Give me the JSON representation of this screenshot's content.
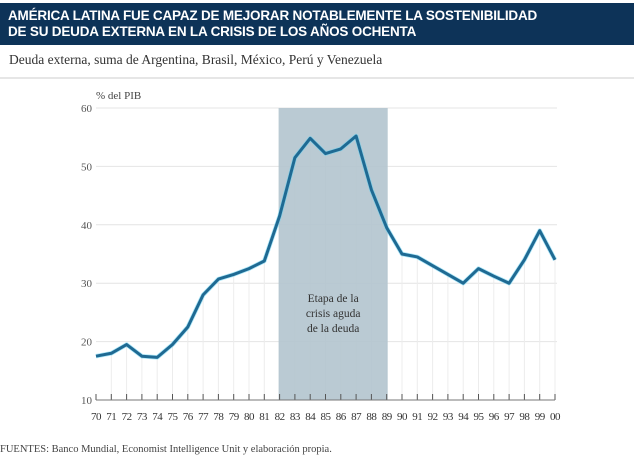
{
  "header": {
    "title_line1": "AMÉRICA LATINA FUE CAPAZ DE MEJORAR NOTABLEMENTE LA SOSTENIBILIDAD",
    "title_line2": "DE SU DEUDA EXTERNA EN LA CRISIS DE LOS AÑOS OCHENTA",
    "subtitle": "Deuda externa, suma de Argentina, Brasil, México, Perú y Venezuela"
  },
  "footer": "FUENTES: Banco Mundial, Economist Intelligence Unit y elaboración propia.",
  "chart_data": {
    "type": "line",
    "ylabel": "% del PIB",
    "ylim": [
      10,
      60
    ],
    "yticks": [
      10,
      20,
      30,
      40,
      50,
      60
    ],
    "grid": true,
    "categories": [
      "70",
      "71",
      "72",
      "73",
      "74",
      "75",
      "76",
      "77",
      "78",
      "79",
      "80",
      "81",
      "82",
      "83",
      "84",
      "85",
      "86",
      "87",
      "88",
      "89",
      "90",
      "91",
      "92",
      "93",
      "94",
      "95",
      "96",
      "97",
      "98",
      "99",
      "00"
    ],
    "values": [
      17.5,
      18,
      19.5,
      17.5,
      17.3,
      19.5,
      22.5,
      28,
      30.7,
      31.5,
      32.5,
      33.8,
      41.5,
      51.5,
      54.8,
      52.2,
      53,
      55.2,
      46,
      39.5,
      35,
      34.5,
      33,
      31.5,
      30,
      32.5,
      31.2,
      30,
      34,
      39,
      34
    ],
    "shaded_region": {
      "from": "82",
      "to": "89",
      "label_lines": [
        "Etapa de la",
        "crisis aguda",
        "de la deuda"
      ],
      "color": "#b3c4ce"
    },
    "line_color": "#1f6a93"
  }
}
